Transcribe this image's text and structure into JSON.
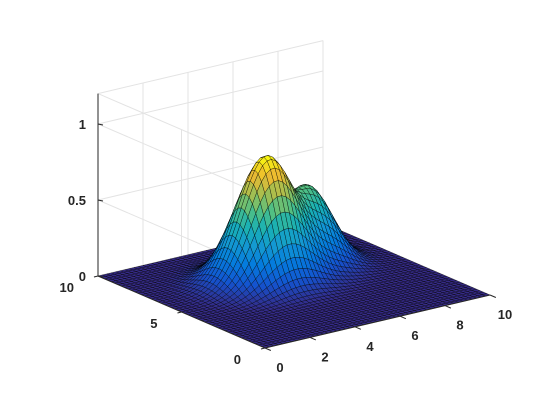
{
  "chart_data": {
    "type": "surface",
    "title": "",
    "xlabel": "",
    "ylabel": "",
    "zlabel": "",
    "xlim": [
      0,
      10
    ],
    "ylim": [
      0,
      10
    ],
    "zlim": [
      0,
      1.2
    ],
    "x_ticks": [
      0,
      2,
      4,
      6,
      8,
      10
    ],
    "y_ticks": [
      0,
      5,
      10
    ],
    "z_ticks": [
      0,
      0.5,
      1
    ],
    "x_tick_labels": [
      "0",
      "2",
      "4",
      "6",
      "8",
      "10"
    ],
    "y_tick_labels": [
      "0",
      "5",
      "10"
    ],
    "z_tick_labels": [
      "0",
      "0.5",
      "1"
    ],
    "grid": true,
    "colormap": "parula",
    "surface": {
      "description_of_shape": "sum of two Gaussian peaks",
      "peaks": [
        {
          "x": 4.5,
          "y": 6.0,
          "height": 0.82,
          "sigma_x": 1.15,
          "sigma_y": 1.0
        },
        {
          "x": 7.0,
          "y": 6.8,
          "height": 0.45,
          "sigma_x": 0.85,
          "sigma_y": 1.0
        }
      ],
      "x_range": [
        0,
        10
      ],
      "y_range": [
        0,
        10
      ]
    },
    "colors": {
      "background": "#ffffff",
      "axis": "#262626",
      "grid": "#e3e3e3",
      "edge": "#000000"
    }
  }
}
